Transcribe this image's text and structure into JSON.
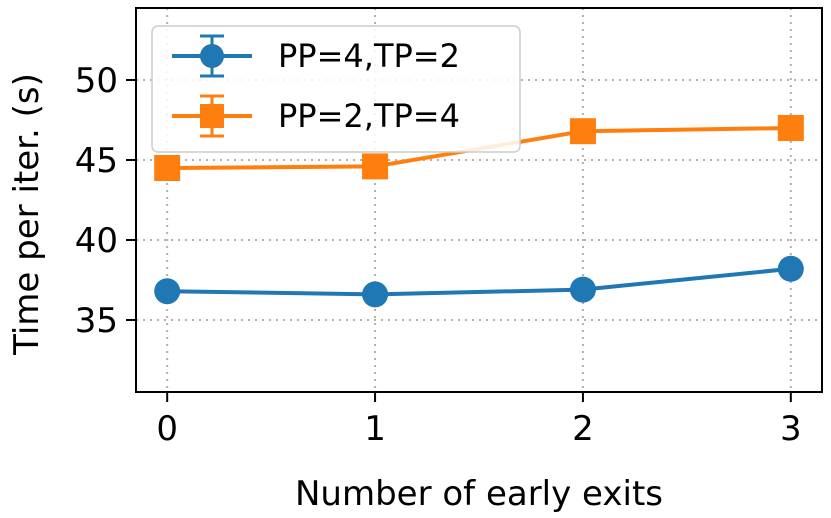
{
  "chart_data": {
    "type": "line",
    "title": "",
    "xlabel": "Number of early exits",
    "ylabel": "Time per iter. (s)",
    "x": [
      0,
      1,
      2,
      3
    ],
    "xticks": [
      "0",
      "1",
      "2",
      "3"
    ],
    "yticks": [
      "35",
      "40",
      "45",
      "50"
    ],
    "xlim": [
      -0.15,
      3.15
    ],
    "ylim": [
      30.5,
      54.5
    ],
    "grid": true,
    "legend_position": "top-left",
    "series": [
      {
        "name": "PP=4,TP=2",
        "values": [
          36.8,
          36.6,
          36.9,
          38.2
        ],
        "color": "#1f77b4",
        "marker": "circle"
      },
      {
        "name": "PP=2,TP=4",
        "values": [
          44.5,
          44.6,
          46.8,
          47.0
        ],
        "color": "#ff7f0e",
        "marker": "square"
      }
    ]
  }
}
